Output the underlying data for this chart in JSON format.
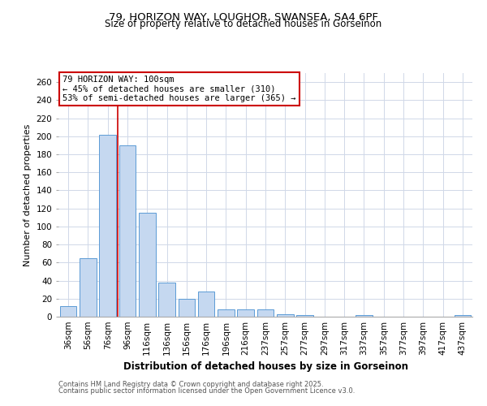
{
  "title_line1": "79, HORIZON WAY, LOUGHOR, SWANSEA, SA4 6PF",
  "title_line2": "Size of property relative to detached houses in Gorseinon",
  "xlabel": "Distribution of detached houses by size in Gorseinon",
  "ylabel": "Number of detached properties",
  "categories": [
    "36sqm",
    "56sqm",
    "76sqm",
    "96sqm",
    "116sqm",
    "136sqm",
    "156sqm",
    "176sqm",
    "196sqm",
    "216sqm",
    "237sqm",
    "257sqm",
    "277sqm",
    "297sqm",
    "317sqm",
    "337sqm",
    "357sqm",
    "377sqm",
    "397sqm",
    "417sqm",
    "437sqm"
  ],
  "values": [
    12,
    65,
    202,
    190,
    115,
    38,
    20,
    28,
    8,
    8,
    8,
    3,
    2,
    0,
    0,
    2,
    0,
    0,
    0,
    0,
    2
  ],
  "bar_color": "#c5d8f0",
  "bar_edge_color": "#5b9bd5",
  "annotation_line1": "79 HORIZON WAY: 100sqm",
  "annotation_line2": "← 45% of detached houses are smaller (310)",
  "annotation_line3": "53% of semi-detached houses are larger (365) →",
  "annotation_box_color": "#ffffff",
  "annotation_box_edge_color": "#cc0000",
  "vline_x": 2.5,
  "vline_color": "#cc0000",
  "ylim": [
    0,
    270
  ],
  "yticks": [
    0,
    20,
    40,
    60,
    80,
    100,
    120,
    140,
    160,
    180,
    200,
    220,
    240,
    260
  ],
  "footer_line1": "Contains HM Land Registry data © Crown copyright and database right 2025.",
  "footer_line2": "Contains public sector information licensed under the Open Government Licence v3.0.",
  "background_color": "#ffffff",
  "grid_color": "#d0d8e8",
  "title_fontsize": 9.5,
  "subtitle_fontsize": 8.5,
  "xlabel_fontsize": 8.5,
  "ylabel_fontsize": 8,
  "tick_fontsize": 7.5,
  "annotation_fontsize": 7.5,
  "footer_fontsize": 6
}
